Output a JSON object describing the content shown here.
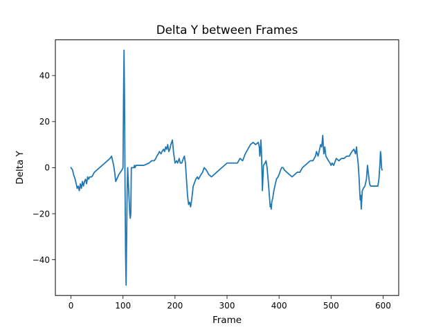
{
  "chart_data": {
    "type": "line",
    "title": "Delta Y between Frames",
    "xlabel": "Frame",
    "ylabel": "Delta Y",
    "xlim": [
      -30,
      630
    ],
    "ylim": [
      -55.5,
      55.5
    ],
    "xticks": [
      0,
      100,
      200,
      300,
      400,
      500,
      600
    ],
    "yticks": [
      -40,
      -20,
      0,
      20,
      40
    ],
    "ytick_labels": [
      "−40",
      "−20",
      "0",
      "20",
      "40"
    ],
    "grid": false,
    "legend": "none",
    "series": [
      {
        "color": "#1f77b4",
        "x": [
          0,
          3,
          5,
          8,
          10,
          12,
          14,
          16,
          18,
          20,
          22,
          24,
          26,
          28,
          30,
          32,
          34,
          36,
          38,
          40,
          45,
          50,
          55,
          60,
          65,
          70,
          75,
          78,
          80,
          82,
          84,
          86,
          88,
          90,
          92,
          95,
          98,
          100,
          101,
          102,
          103,
          104,
          105,
          106,
          107,
          108,
          109,
          110,
          111,
          112,
          113,
          114,
          115,
          116,
          118,
          120,
          121,
          122,
          123,
          125,
          130,
          140,
          150,
          155,
          160,
          163,
          165,
          168,
          170,
          173,
          175,
          178,
          180,
          182,
          184,
          186,
          188,
          190,
          192,
          195,
          197,
          200,
          203,
          205,
          208,
          210,
          213,
          216,
          218,
          220,
          222,
          224,
          226,
          228,
          230,
          232,
          235,
          240,
          243,
          245,
          250,
          253,
          256,
          260,
          265,
          270,
          275,
          280,
          285,
          290,
          300,
          310,
          320,
          325,
          330,
          335,
          340,
          345,
          350,
          355,
          360,
          362,
          363,
          364,
          365,
          366,
          367,
          368,
          370,
          373,
          375,
          377,
          380,
          382,
          383,
          384,
          385,
          386,
          388,
          390,
          393,
          395,
          398,
          400,
          403,
          405,
          408,
          410,
          420,
          425,
          430,
          435,
          440,
          445,
          450,
          455,
          460,
          465,
          470,
          472,
          475,
          478,
          480,
          482,
          484,
          486,
          488,
          490,
          495,
          498,
          500,
          502,
          505,
          510,
          515,
          520,
          525,
          530,
          535,
          540,
          544,
          547,
          549,
          550,
          552,
          554,
          555,
          556,
          557,
          558,
          560,
          562,
          565,
          568,
          570,
          572,
          574,
          576,
          580,
          585,
          590,
          592,
          594,
          595,
          596,
          597,
          598
        ],
        "y": [
          0,
          -1,
          -3,
          -5,
          -7,
          -9,
          -8,
          -10,
          -7,
          -9,
          -6,
          -8,
          -6,
          -5,
          -7,
          -4,
          -5,
          -4,
          -4,
          -4,
          -2,
          -1,
          0,
          1,
          2,
          3,
          4,
          5,
          3,
          1,
          -2,
          -6,
          -5,
          -4,
          -3,
          -2,
          -1,
          0,
          30,
          51,
          28,
          -10,
          -38,
          -51,
          -30,
          -10,
          0,
          -5,
          -10,
          -15,
          -20,
          -22,
          -20,
          0,
          0,
          0,
          0,
          1,
          0,
          1,
          1,
          1,
          2,
          3,
          3,
          4,
          5,
          6,
          7,
          6,
          7,
          8,
          7,
          9,
          8,
          10,
          7,
          8,
          10,
          12,
          7,
          2,
          3,
          2,
          4,
          2,
          2,
          4,
          5,
          2,
          -5,
          -12,
          -16,
          -15,
          -17,
          -14,
          -8,
          -5,
          -4,
          -5,
          -3,
          -2,
          0,
          -1,
          -3,
          -4,
          -3,
          -2,
          -1,
          0,
          2,
          2,
          2,
          4,
          3,
          6,
          8,
          10,
          11,
          10,
          11,
          9,
          5,
          7,
          12,
          8,
          0,
          -10,
          1,
          2,
          3,
          0,
          -8,
          -14,
          -17,
          -16,
          -18,
          -15,
          -13,
          -10,
          -7,
          -5,
          -4,
          -3,
          -1,
          0,
          0,
          -1,
          -3,
          -4,
          -3,
          -2,
          -2,
          0,
          1,
          2,
          3,
          3,
          5,
          7,
          5,
          8,
          10,
          9,
          14,
          6,
          9,
          5,
          3,
          2,
          1,
          2,
          1,
          4,
          3,
          4,
          4,
          5,
          5,
          7,
          8,
          6,
          9,
          6,
          2,
          -5,
          -10,
          -14,
          -12,
          -18,
          -10,
          -9,
          -8,
          -5,
          1,
          -3,
          -7,
          -8,
          -8,
          -8,
          -8,
          -5,
          2,
          7,
          5,
          0,
          -1
        ]
      }
    ]
  }
}
